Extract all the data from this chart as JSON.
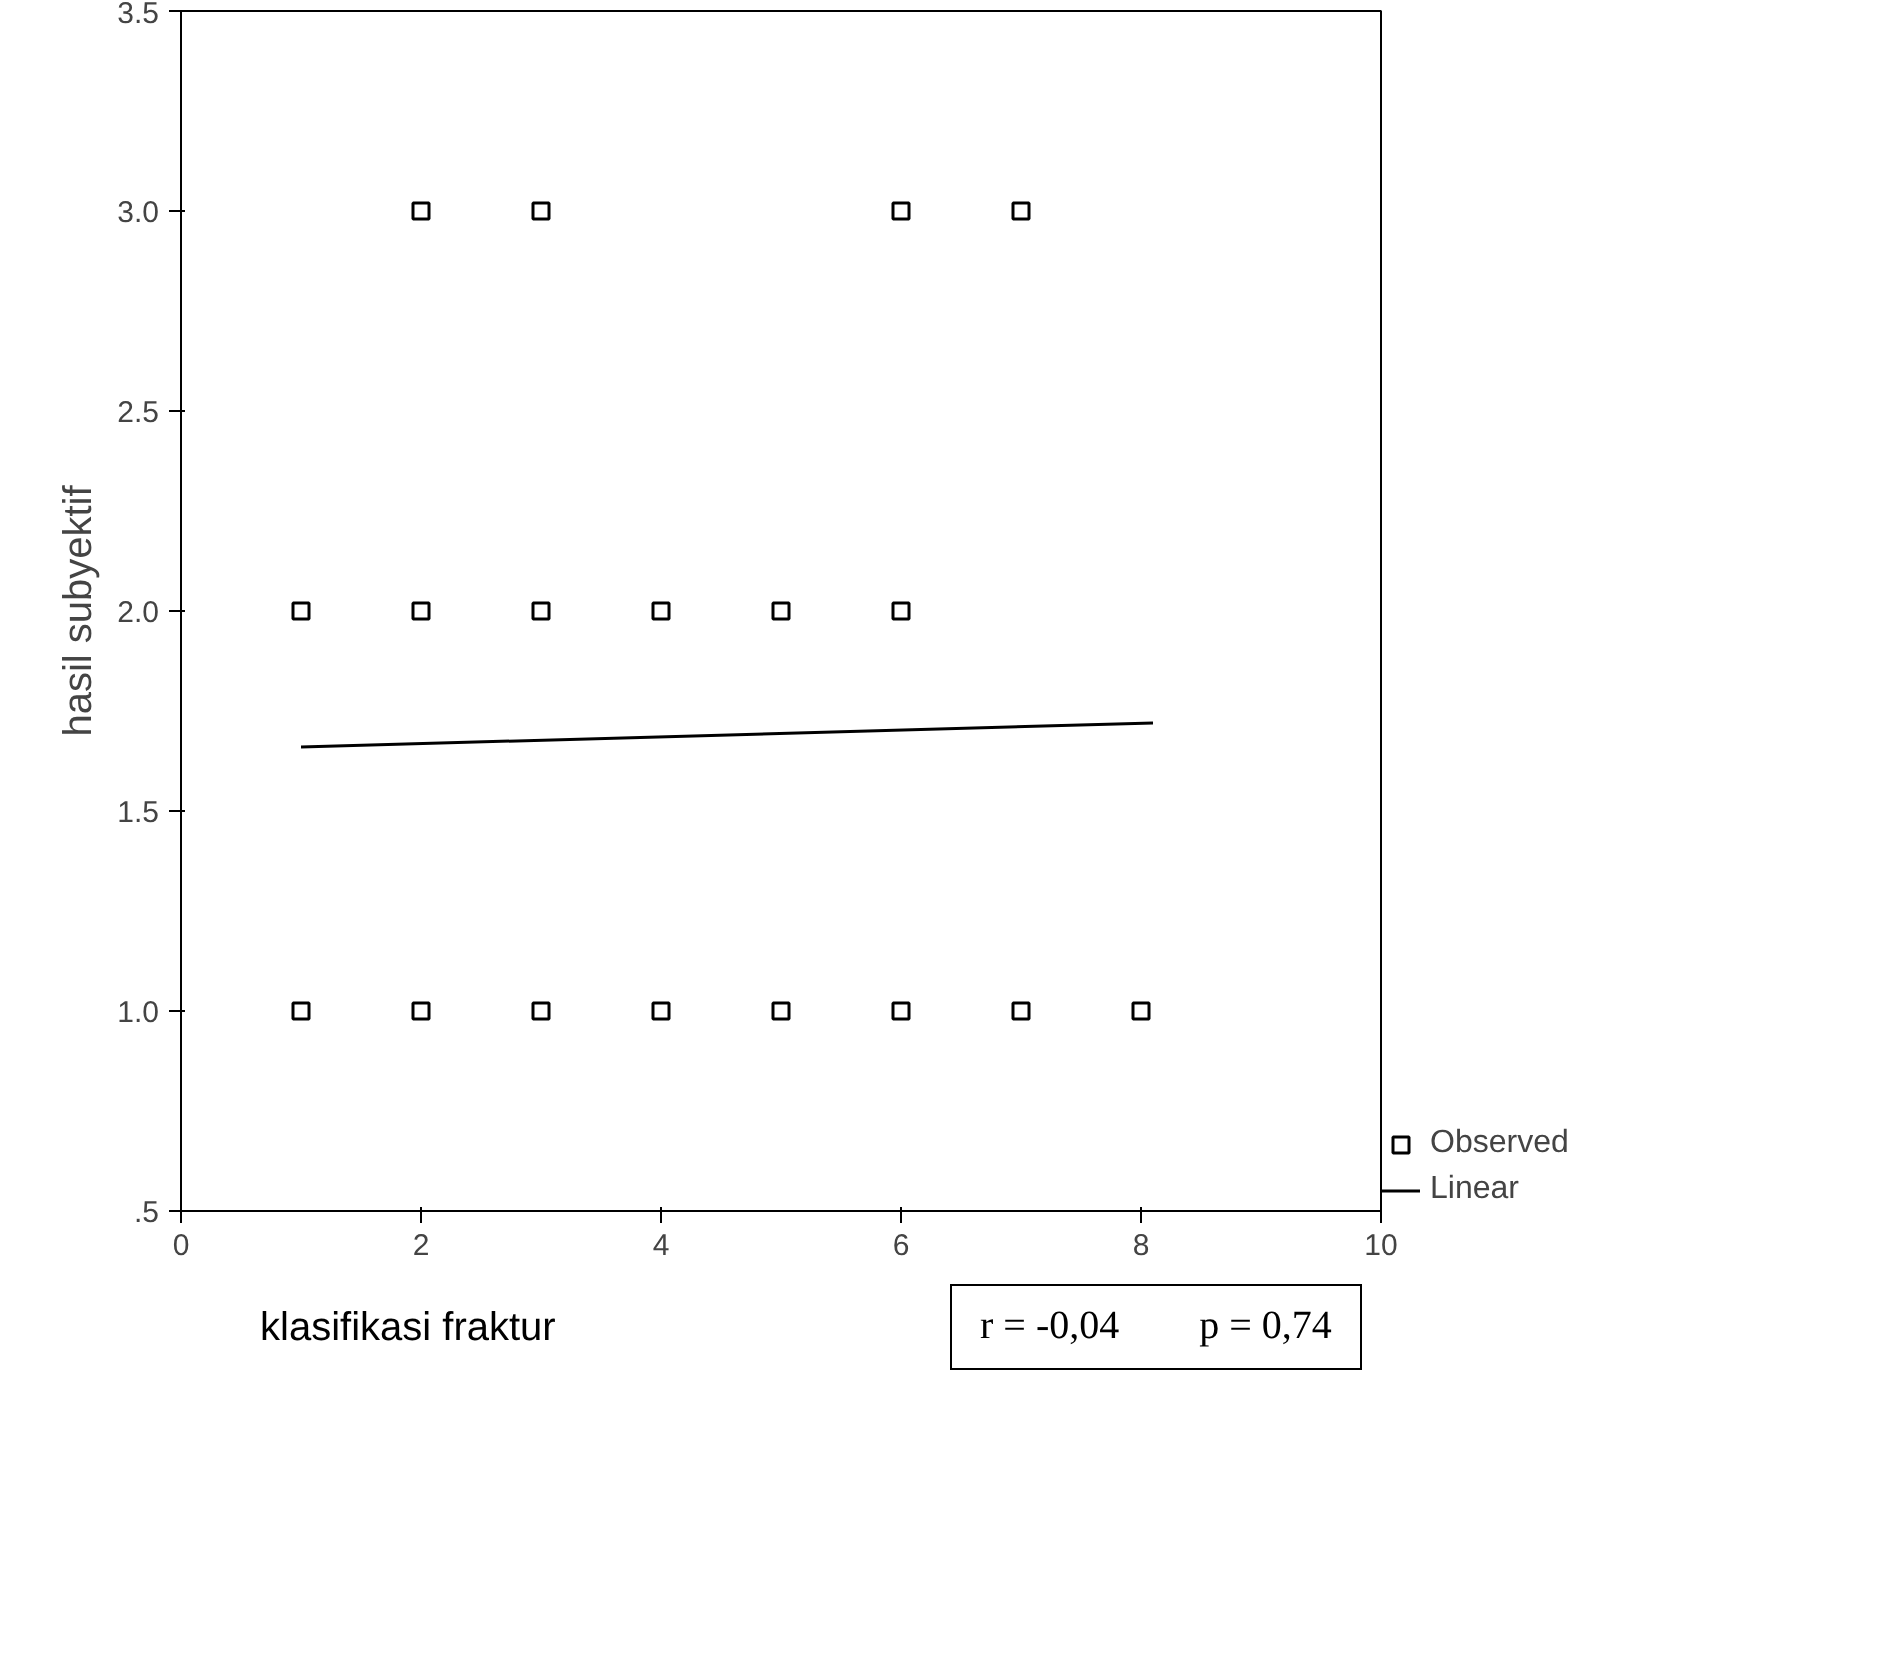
{
  "chart_data": {
    "type": "scatter",
    "xlabel": "klasifikasi fraktur",
    "ylabel": "hasil subyektif",
    "xlim": [
      0,
      10
    ],
    "ylim": [
      0.5,
      3.5
    ],
    "xticks": [
      0,
      2,
      4,
      6,
      8,
      10
    ],
    "yticks": [
      {
        "value": 0.5,
        "label": ".5"
      },
      {
        "value": 1.0,
        "label": "1.0"
      },
      {
        "value": 1.5,
        "label": "1.5"
      },
      {
        "value": 2.0,
        "label": "2.0"
      },
      {
        "value": 2.5,
        "label": "2.5"
      },
      {
        "value": 3.0,
        "label": "3.0"
      },
      {
        "value": 3.5,
        "label": "3.5"
      }
    ],
    "series": [
      {
        "name": "Observed",
        "color": "#000000",
        "marker": "square",
        "x": [
          2,
          3,
          6,
          7,
          1,
          2,
          3,
          4,
          5,
          6,
          1,
          2,
          3,
          4,
          5,
          6,
          7,
          8
        ],
        "values": [
          3,
          3,
          3,
          3,
          2,
          2,
          2,
          2,
          2,
          2,
          1,
          1,
          1,
          1,
          1,
          1,
          1,
          1
        ]
      },
      {
        "name": "Linear",
        "type": "line",
        "color": "#000000",
        "x": [
          1,
          8.1
        ],
        "values": [
          1.66,
          1.72
        ]
      }
    ],
    "legend": "bottom right",
    "grid": false,
    "annotations": [
      "r = -0,04        p = 0,74"
    ]
  }
}
